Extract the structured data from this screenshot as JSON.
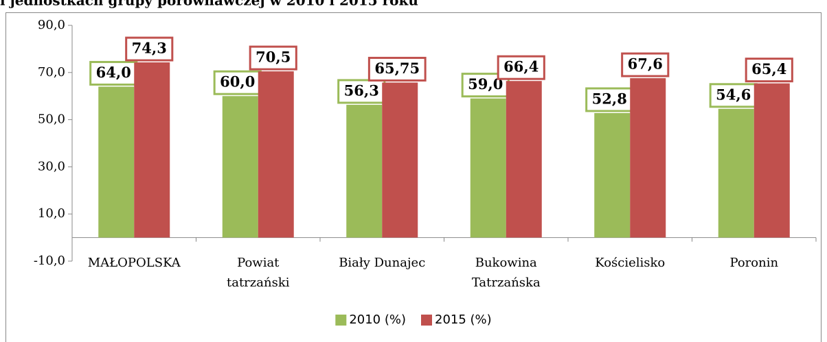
{
  "chart_data": {
    "type": "bar",
    "title": "i jednostkach grupy porównawczej w 2010 i 2015 roku",
    "categories": [
      "MAŁOPOLSKA",
      "Powiat tatrzański",
      "Biały Dunajec",
      "Bukowina Tatrzańska",
      "Kościelisko",
      "Poronin"
    ],
    "series": [
      {
        "name": "2010 (%)",
        "color": "#9bbb59",
        "values": [
          64.0,
          60.0,
          56.3,
          59.0,
          52.8,
          54.6
        ],
        "value_labels": [
          "64,0",
          "60,0",
          "56,3",
          "59,0",
          "52,8",
          "54,6"
        ]
      },
      {
        "name": "2015 (%)",
        "color": "#c0504d",
        "values": [
          74.3,
          70.5,
          65.75,
          66.4,
          67.6,
          65.4
        ],
        "value_labels": [
          "74,3",
          "70,5",
          "65,75",
          "66,4",
          "67,6",
          "65,4"
        ]
      }
    ],
    "ylim": [
      -10,
      90
    ],
    "yticks": [
      {
        "value": -10,
        "label": "-10,0"
      },
      {
        "value": 10,
        "label": "10,0"
      },
      {
        "value": 30,
        "label": "30,0"
      },
      {
        "value": 50,
        "label": "50,0"
      },
      {
        "value": 70,
        "label": "70,0"
      },
      {
        "value": 90,
        "label": "90,0"
      }
    ],
    "grid": false,
    "legend": "bottom"
  }
}
